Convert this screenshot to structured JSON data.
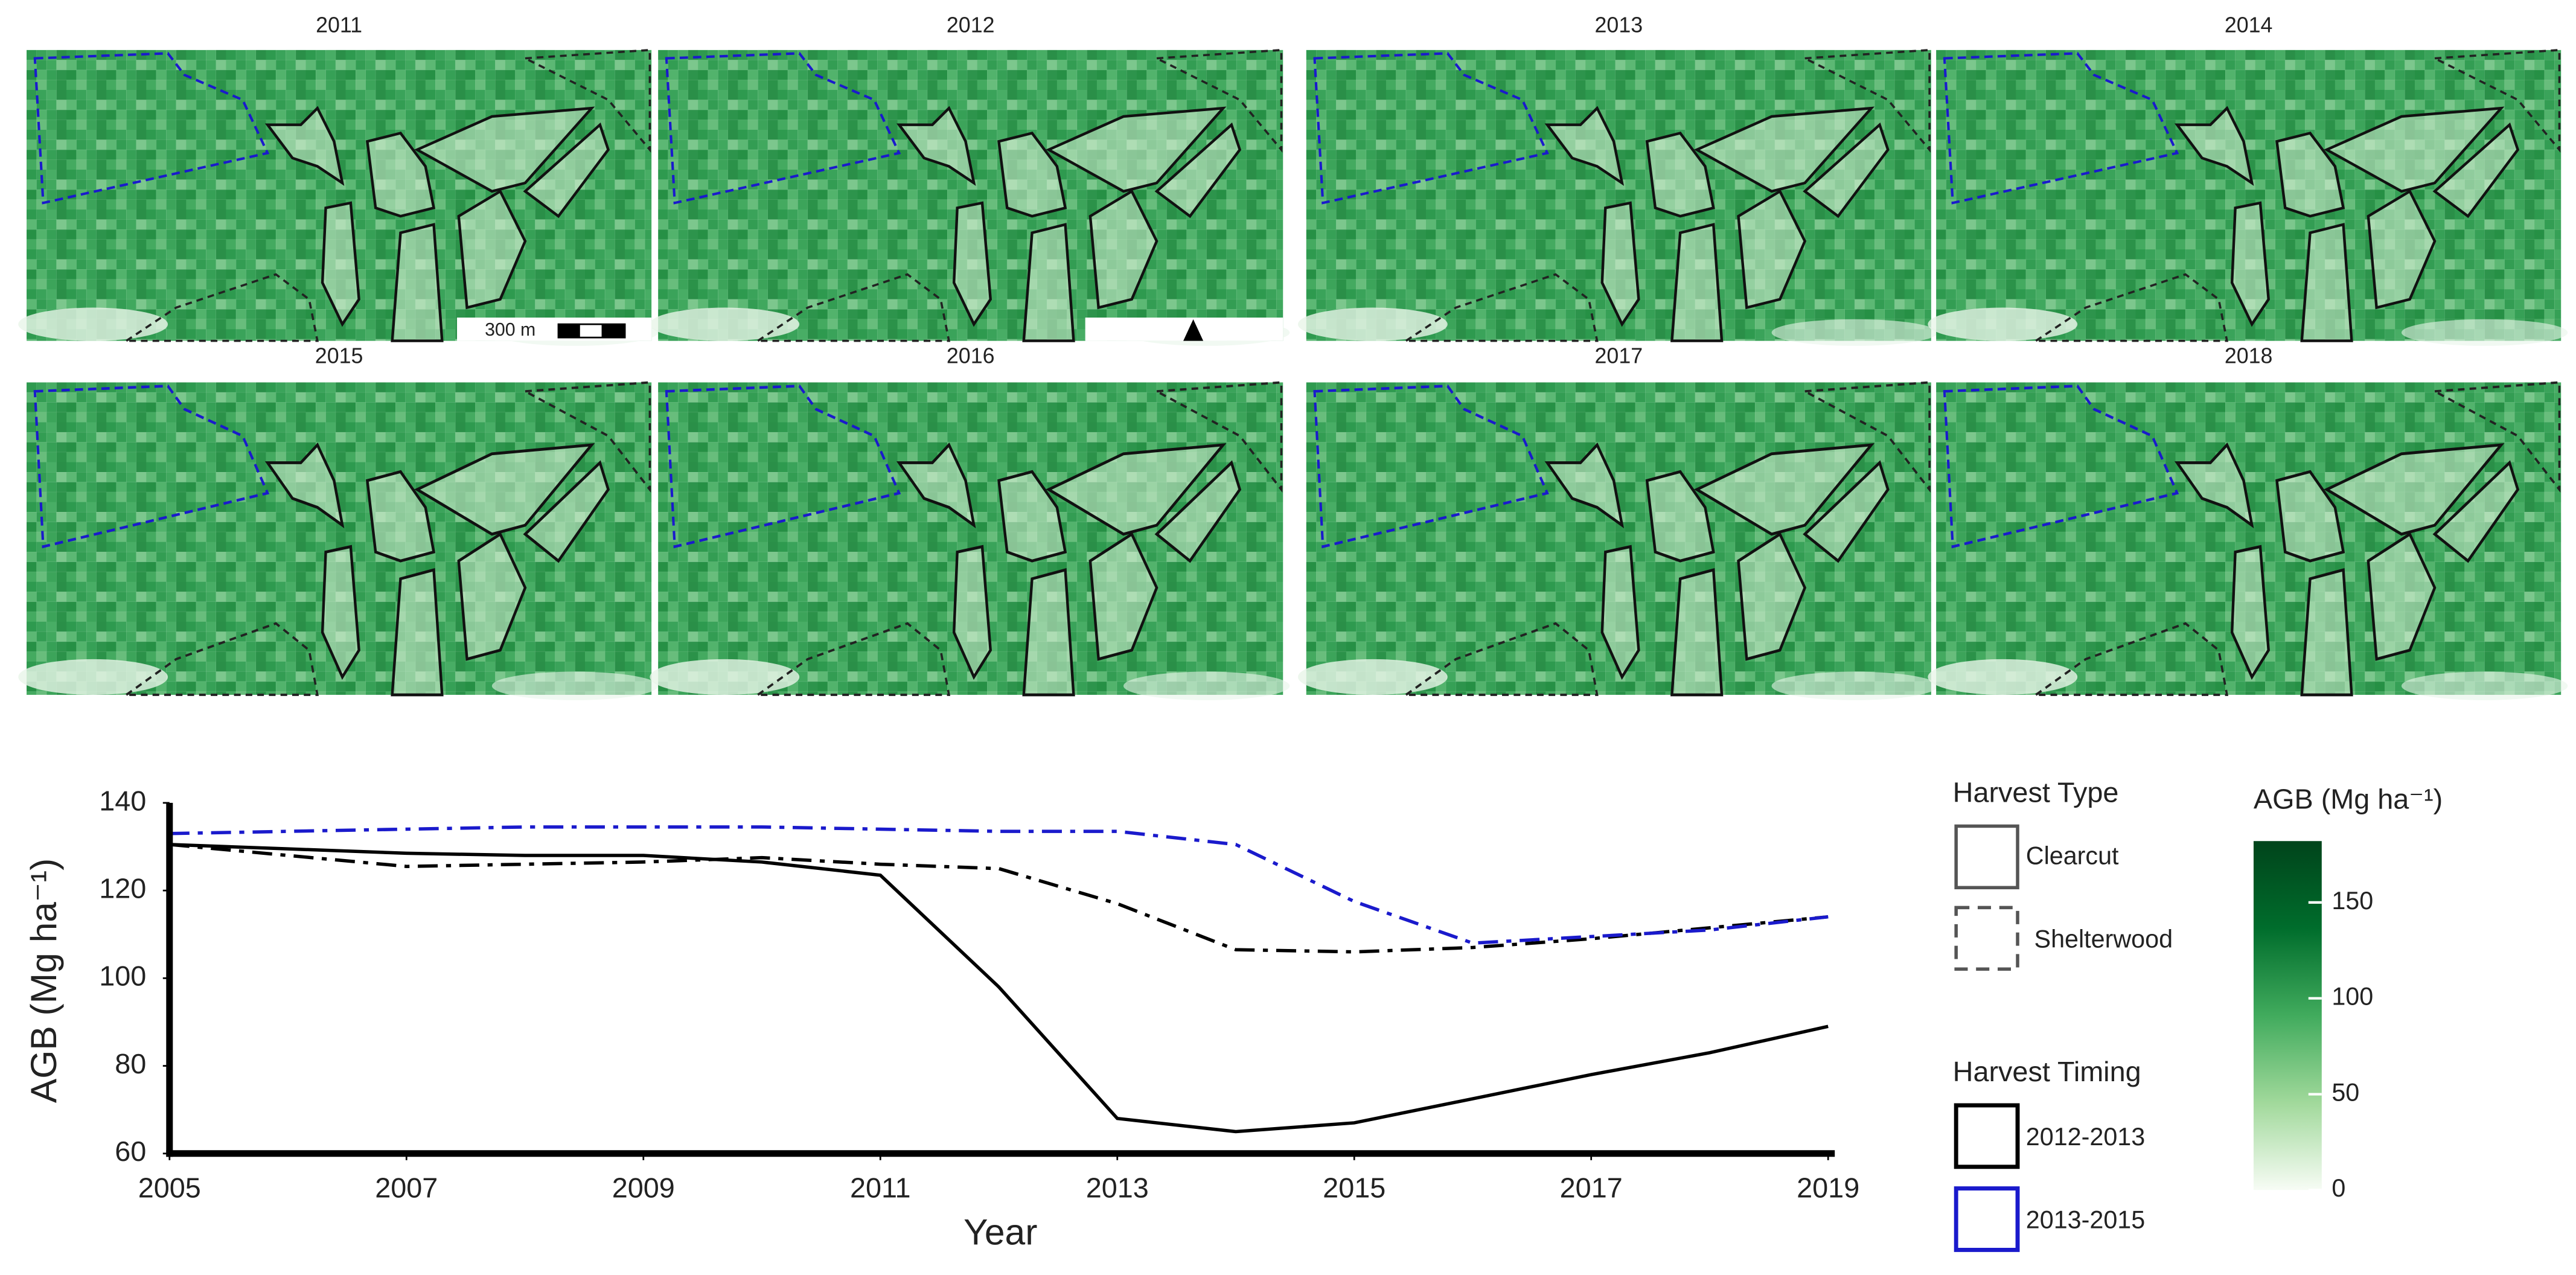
{
  "maps": {
    "panels": [
      {
        "title": "2011"
      },
      {
        "title": "2012"
      },
      {
        "title": "2013"
      },
      {
        "title": "2014"
      },
      {
        "title": "2015"
      },
      {
        "title": "2016"
      },
      {
        "title": "2017"
      },
      {
        "title": "2018"
      }
    ],
    "scale_label": "300 m"
  },
  "chart_data": {
    "type": "line",
    "xlabel": "Year",
    "ylabel": "AGB (Mg ha⁻¹)",
    "x": [
      2005,
      2006,
      2007,
      2008,
      2009,
      2010,
      2011,
      2012,
      2013,
      2014,
      2015,
      2016,
      2017,
      2018,
      2019
    ],
    "xlim": [
      2005,
      2019
    ],
    "xticks": [
      2005,
      2007,
      2009,
      2011,
      2013,
      2015,
      2017,
      2019
    ],
    "ylim": [
      60,
      140
    ],
    "yticks": [
      60,
      80,
      100,
      120,
      140
    ],
    "series": [
      {
        "color": "#000000",
        "linestyle": "solid",
        "values": [
          130.5,
          129.5,
          128.5,
          128,
          128,
          126.5,
          123.5,
          98,
          68,
          65,
          67,
          72.5,
          78,
          83,
          89
        ]
      },
      {
        "color": "#000000",
        "linestyle": "dashdot",
        "values": [
          130.5,
          128,
          125.5,
          126,
          126.5,
          127.5,
          126,
          125,
          117,
          106.5,
          106,
          107,
          109,
          111.5,
          114
        ]
      },
      {
        "color": "#1a1acc",
        "linestyle": "dashdot",
        "values": [
          133,
          133.5,
          134,
          134.5,
          134.5,
          134.5,
          134,
          133.5,
          133.5,
          130.5,
          117.5,
          108,
          109.5,
          111,
          114
        ]
      }
    ]
  },
  "legend": {
    "harvest_type": {
      "title": "Harvest Type",
      "items": [
        {
          "label": "Clearcut",
          "linestyle": "solid"
        },
        {
          "label": "Shelterwood",
          "linestyle": "dashed"
        }
      ]
    },
    "harvest_timing": {
      "title": "Harvest Timing",
      "items": [
        {
          "label": "2012-2013",
          "color": "#000000"
        },
        {
          "label": "2013-2015",
          "color": "#1a1acc"
        }
      ]
    }
  },
  "colorbar": {
    "title": "AGB (Mg ha⁻¹)",
    "lim": [
      0,
      182
    ],
    "ticks": [
      0,
      50,
      100,
      150
    ],
    "colors": [
      "#f7fcf5",
      "#a1d99b",
      "#41ab5d",
      "#006d2c",
      "#00441b"
    ]
  }
}
